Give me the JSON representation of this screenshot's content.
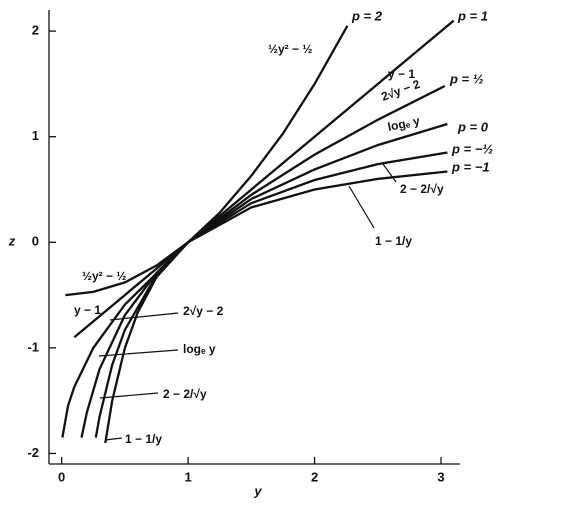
{
  "chart_data": {
    "type": "line",
    "x_label": "y",
    "y_label": "z",
    "xlim": [
      -0.1,
      3.15
    ],
    "ylim": [
      -2.1,
      2.2
    ],
    "xticks": [
      0,
      1,
      2,
      3
    ],
    "yticks": [
      -2,
      -1,
      0,
      1,
      2
    ],
    "series": [
      {
        "name": "p = 2",
        "color": "#111111",
        "x": [
          0.03,
          0.25,
          0.5,
          0.75,
          1,
          1.25,
          1.5,
          1.75,
          2,
          2.26
        ],
        "values": [
          -0.5,
          -0.47,
          -0.38,
          -0.22,
          0,
          0.28,
          0.63,
          1.03,
          1.5,
          2.05
        ]
      },
      {
        "name": "p = 1",
        "color": "#111111",
        "x": [
          0.1,
          1,
          3.1
        ],
        "values": [
          -0.9,
          0,
          2.1
        ]
      },
      {
        "name": "p = ½",
        "color": "#111111",
        "x": [
          0.006,
          0.05,
          0.1,
          0.25,
          0.5,
          1,
          1.5,
          2,
          2.5,
          3.03
        ],
        "values": [
          -1.85,
          -1.55,
          -1.37,
          -1,
          -0.59,
          0,
          0.45,
          0.83,
          1.16,
          1.48
        ]
      },
      {
        "name": "p = 0",
        "color": "#111111",
        "x": [
          0.157,
          0.2,
          0.3,
          0.5,
          0.75,
          1,
          1.5,
          2,
          2.5,
          3.05
        ],
        "values": [
          -1.85,
          -1.61,
          -1.2,
          -0.69,
          -0.29,
          0,
          0.41,
          0.69,
          0.92,
          1.12
        ]
      },
      {
        "name": "p = −½",
        "color": "#111111",
        "x": [
          0.27,
          0.3,
          0.4,
          0.5,
          0.75,
          1,
          1.5,
          2,
          2.5,
          3.05
        ],
        "values": [
          -1.85,
          -1.65,
          -1.16,
          -0.83,
          -0.31,
          0,
          0.37,
          0.59,
          0.74,
          0.85
        ]
      },
      {
        "name": "p = −1",
        "color": "#111111",
        "x": [
          0.345,
          0.4,
          0.5,
          0.6,
          0.75,
          1,
          1.5,
          2,
          2.5,
          3.05
        ],
        "values": [
          -1.9,
          -1.5,
          -1,
          -0.67,
          -0.33,
          0,
          0.33,
          0.5,
          0.6,
          0.67
        ]
      }
    ],
    "annotations": [
      "½y² − ½",
      "y − 1",
      "2√y − 2",
      "logₑ y",
      "2 − 2/√y",
      "1 − 1/y",
      "½y² − ½",
      "y − 1",
      "2√y − 2",
      "logₑ y",
      "2 − 2/√y",
      "1 − 1/y"
    ]
  }
}
